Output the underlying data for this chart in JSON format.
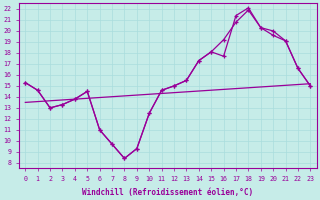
{
  "xlabel": "Windchill (Refroidissement éolien,°C)",
  "xlim": [
    -0.5,
    23.5
  ],
  "ylim": [
    7.5,
    22.5
  ],
  "xticks": [
    0,
    1,
    2,
    3,
    4,
    5,
    6,
    7,
    8,
    9,
    10,
    11,
    12,
    13,
    14,
    15,
    16,
    17,
    18,
    19,
    20,
    21,
    22,
    23
  ],
  "yticks": [
    8,
    9,
    10,
    11,
    12,
    13,
    14,
    15,
    16,
    17,
    18,
    19,
    20,
    21,
    22
  ],
  "bg_color": "#c6ece8",
  "line_color": "#990099",
  "grid_color": "#aadddd",
  "curve1_x": [
    0,
    1,
    2,
    3,
    4,
    5,
    6,
    7,
    8,
    9,
    10,
    11,
    12,
    13,
    14,
    15,
    16,
    17,
    18,
    19,
    20,
    21,
    22,
    23
  ],
  "curve1_y": [
    15.3,
    14.6,
    13.0,
    13.3,
    13.8,
    14.5,
    11.0,
    9.7,
    8.4,
    9.3,
    12.5,
    14.6,
    15.0,
    15.5,
    17.3,
    18.1,
    17.7,
    21.4,
    22.1,
    20.3,
    19.6,
    19.1,
    16.6,
    15.0
  ],
  "curve2_x": [
    0,
    1,
    2,
    3,
    4,
    5,
    6,
    7,
    8,
    9,
    10,
    11,
    12,
    13,
    14,
    15,
    16,
    17,
    18,
    19,
    20,
    21,
    22,
    23
  ],
  "curve2_y": [
    15.3,
    14.6,
    13.0,
    13.3,
    13.8,
    14.5,
    11.0,
    9.7,
    8.4,
    9.3,
    12.5,
    14.6,
    15.0,
    15.5,
    17.3,
    18.1,
    19.2,
    20.8,
    21.9,
    20.3,
    20.0,
    19.1,
    16.6,
    15.0
  ],
  "trend_x": [
    0,
    23
  ],
  "trend_y": [
    13.5,
    15.2
  ]
}
